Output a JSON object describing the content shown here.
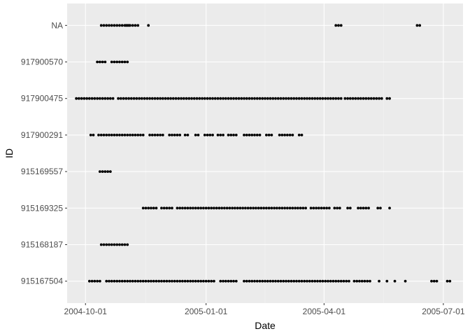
{
  "chart_data": {
    "type": "scatter",
    "xlabel": "Date",
    "ylabel": "ID",
    "x_type": "date",
    "xlim": [
      "2004-09-17",
      "2005-07-16"
    ],
    "x_ticks": [
      {
        "value": "2004-10-01",
        "label": "2004-10-01"
      },
      {
        "value": "2005-01-01",
        "label": "2005-01-01"
      },
      {
        "value": "2005-04-01",
        "label": "2005-04-01"
      },
      {
        "value": "2005-07-01",
        "label": "2005-07-01"
      }
    ],
    "categories": [
      "915167504",
      "915168187",
      "915169325",
      "915169557",
      "917900291",
      "917900475",
      "917900570",
      "NA"
    ],
    "grid": true,
    "legend": "none",
    "colors": {
      "panel": "#ebebeb",
      "grid_major": "#ffffff",
      "grid_minor": "#f5f5f5",
      "point": "#000000"
    },
    "series": [
      {
        "category": "NA",
        "x": [
          "2004-10-13",
          "2004-10-15",
          "2004-10-17",
          "2004-10-19",
          "2004-10-21",
          "2004-10-23",
          "2004-10-25",
          "2004-10-27",
          "2004-10-29",
          "2004-10-31",
          "2004-11-01",
          "2004-11-02",
          "2004-11-03",
          "2004-11-04",
          "2004-11-06",
          "2004-11-08",
          "2004-11-10",
          "2004-11-18",
          "2005-04-10",
          "2005-04-12",
          "2005-04-14",
          "2005-06-11",
          "2005-06-13"
        ]
      },
      {
        "category": "917900570",
        "x": [
          "2004-10-10",
          "2004-10-12",
          "2004-10-14",
          "2004-10-16",
          "2004-10-21",
          "2004-10-23",
          "2004-10-25",
          "2004-10-27",
          "2004-10-29",
          "2004-10-31",
          "2004-11-02"
        ]
      },
      {
        "category": "917900475",
        "x": [
          "2004-09-24",
          "2004-09-26",
          "2004-09-28",
          "2004-09-30",
          "2004-10-02",
          "2004-10-04",
          "2004-10-06",
          "2004-10-08",
          "2004-10-10",
          "2004-10-12",
          "2004-10-14",
          "2004-10-16",
          "2004-10-18",
          "2004-10-20",
          "2004-10-22",
          "2004-10-26",
          "2004-10-28",
          "2004-10-30",
          "2004-11-01",
          "2004-11-03",
          "2004-11-05",
          "2004-11-07",
          "2004-11-09",
          "2004-11-11",
          "2004-11-13",
          "2004-11-15",
          "2004-11-17",
          "2004-11-19",
          "2004-11-21",
          "2004-11-23",
          "2004-11-25",
          "2004-11-27",
          "2004-11-29",
          "2004-12-01",
          "2004-12-03",
          "2004-12-05",
          "2004-12-07",
          "2004-12-09",
          "2004-12-11",
          "2004-12-13",
          "2004-12-15",
          "2004-12-17",
          "2004-12-19",
          "2004-12-21",
          "2004-12-23",
          "2004-12-25",
          "2004-12-27",
          "2004-12-29",
          "2004-12-31",
          "2005-01-02",
          "2005-01-04",
          "2005-01-06",
          "2005-01-08",
          "2005-01-10",
          "2005-01-12",
          "2005-01-14",
          "2005-01-16",
          "2005-01-18",
          "2005-01-20",
          "2005-01-22",
          "2005-01-24",
          "2005-01-26",
          "2005-01-28",
          "2005-01-30",
          "2005-02-01",
          "2005-02-03",
          "2005-02-05",
          "2005-02-07",
          "2005-02-09",
          "2005-02-11",
          "2005-02-13",
          "2005-02-15",
          "2005-02-17",
          "2005-02-19",
          "2005-02-21",
          "2005-02-23",
          "2005-02-25",
          "2005-02-27",
          "2005-03-01",
          "2005-03-03",
          "2005-03-05",
          "2005-03-07",
          "2005-03-09",
          "2005-03-11",
          "2005-03-13",
          "2005-03-15",
          "2005-03-17",
          "2005-03-19",
          "2005-03-21",
          "2005-03-23",
          "2005-03-25",
          "2005-03-27",
          "2005-03-29",
          "2005-03-31",
          "2005-04-02",
          "2005-04-04",
          "2005-04-06",
          "2005-04-08",
          "2005-04-10",
          "2005-04-12",
          "2005-04-14",
          "2005-04-17",
          "2005-04-19",
          "2005-04-21",
          "2005-04-23",
          "2005-04-25",
          "2005-04-27",
          "2005-04-29",
          "2005-05-01",
          "2005-05-03",
          "2005-05-05",
          "2005-05-07",
          "2005-05-09",
          "2005-05-11",
          "2005-05-13",
          "2005-05-15",
          "2005-05-19",
          "2005-05-21"
        ]
      },
      {
        "category": "917900291",
        "x": [
          "2004-10-05",
          "2004-10-07",
          "2004-10-11",
          "2004-10-13",
          "2004-10-15",
          "2004-10-17",
          "2004-10-19",
          "2004-10-21",
          "2004-10-23",
          "2004-10-25",
          "2004-10-27",
          "2004-10-29",
          "2004-10-31",
          "2004-11-02",
          "2004-11-04",
          "2004-11-06",
          "2004-11-08",
          "2004-11-10",
          "2004-11-12",
          "2004-11-14",
          "2004-11-19",
          "2004-11-21",
          "2004-11-23",
          "2004-11-25",
          "2004-11-27",
          "2004-11-29",
          "2004-12-04",
          "2004-12-06",
          "2004-12-08",
          "2004-12-10",
          "2004-12-12",
          "2004-12-16",
          "2004-12-18",
          "2004-12-24",
          "2004-12-26",
          "2004-12-31",
          "2005-01-02",
          "2005-01-04",
          "2005-01-06",
          "2005-01-10",
          "2005-01-12",
          "2005-01-14",
          "2005-01-18",
          "2005-01-20",
          "2005-01-22",
          "2005-01-24",
          "2005-01-30",
          "2005-02-01",
          "2005-02-03",
          "2005-02-05",
          "2005-02-07",
          "2005-02-09",
          "2005-02-11",
          "2005-02-16",
          "2005-02-18",
          "2005-02-20",
          "2005-02-26",
          "2005-02-28",
          "2005-03-02",
          "2005-03-04",
          "2005-03-06",
          "2005-03-08",
          "2005-03-13",
          "2005-03-15"
        ]
      },
      {
        "category": "915169557",
        "x": [
          "2004-10-12",
          "2004-10-14",
          "2004-10-16",
          "2004-10-18",
          "2004-10-20"
        ]
      },
      {
        "category": "915169325",
        "x": [
          "2004-11-14",
          "2004-11-16",
          "2004-11-18",
          "2004-11-20",
          "2004-11-22",
          "2004-11-24",
          "2004-11-28",
          "2004-11-30",
          "2004-12-02",
          "2004-12-04",
          "2004-12-06",
          "2004-12-10",
          "2004-12-12",
          "2004-12-14",
          "2004-12-16",
          "2004-12-18",
          "2004-12-20",
          "2004-12-22",
          "2004-12-24",
          "2004-12-26",
          "2004-12-28",
          "2004-12-30",
          "2005-01-01",
          "2005-01-03",
          "2005-01-05",
          "2005-01-07",
          "2005-01-09",
          "2005-01-11",
          "2005-01-13",
          "2005-01-15",
          "2005-01-17",
          "2005-01-19",
          "2005-01-21",
          "2005-01-23",
          "2005-01-25",
          "2005-01-27",
          "2005-01-29",
          "2005-01-31",
          "2005-02-02",
          "2005-02-04",
          "2005-02-06",
          "2005-02-08",
          "2005-02-10",
          "2005-02-12",
          "2005-02-14",
          "2005-02-16",
          "2005-02-18",
          "2005-02-20",
          "2005-02-22",
          "2005-02-24",
          "2005-02-26",
          "2005-02-28",
          "2005-03-02",
          "2005-03-04",
          "2005-03-06",
          "2005-03-08",
          "2005-03-10",
          "2005-03-12",
          "2005-03-14",
          "2005-03-16",
          "2005-03-18",
          "2005-03-22",
          "2005-03-24",
          "2005-03-26",
          "2005-03-28",
          "2005-03-30",
          "2005-04-01",
          "2005-04-03",
          "2005-04-05",
          "2005-04-09",
          "2005-04-11",
          "2005-04-13",
          "2005-04-19",
          "2005-04-21",
          "2005-04-27",
          "2005-04-29",
          "2005-05-01",
          "2005-05-03",
          "2005-05-05",
          "2005-05-12",
          "2005-05-14",
          "2005-05-21"
        ]
      },
      {
        "category": "915168187",
        "x": [
          "2004-10-13",
          "2004-10-15",
          "2004-10-17",
          "2004-10-19",
          "2004-10-21",
          "2004-10-23",
          "2004-10-25",
          "2004-10-27",
          "2004-10-29",
          "2004-10-31",
          "2004-11-02"
        ]
      },
      {
        "category": "915167504",
        "x": [
          "2004-10-04",
          "2004-10-06",
          "2004-10-08",
          "2004-10-10",
          "2004-10-12",
          "2004-10-17",
          "2004-10-19",
          "2004-10-21",
          "2004-10-23",
          "2004-10-25",
          "2004-10-27",
          "2004-10-29",
          "2004-10-31",
          "2004-11-02",
          "2004-11-04",
          "2004-11-06",
          "2004-11-08",
          "2004-11-10",
          "2004-11-12",
          "2004-11-14",
          "2004-11-16",
          "2004-11-18",
          "2004-11-20",
          "2004-11-22",
          "2004-11-24",
          "2004-11-26",
          "2004-11-28",
          "2004-11-30",
          "2004-12-02",
          "2004-12-04",
          "2004-12-06",
          "2004-12-08",
          "2004-12-10",
          "2004-12-12",
          "2004-12-14",
          "2004-12-16",
          "2004-12-18",
          "2004-12-20",
          "2004-12-22",
          "2004-12-24",
          "2004-12-26",
          "2004-12-28",
          "2004-12-30",
          "2005-01-01",
          "2005-01-03",
          "2005-01-05",
          "2005-01-07",
          "2005-01-12",
          "2005-01-14",
          "2005-01-16",
          "2005-01-18",
          "2005-01-20",
          "2005-01-22",
          "2005-01-24",
          "2005-01-30",
          "2005-02-01",
          "2005-02-03",
          "2005-02-05",
          "2005-02-07",
          "2005-02-09",
          "2005-02-11",
          "2005-02-13",
          "2005-02-15",
          "2005-02-17",
          "2005-02-19",
          "2005-02-21",
          "2005-02-23",
          "2005-02-25",
          "2005-02-27",
          "2005-03-01",
          "2005-03-03",
          "2005-03-05",
          "2005-03-07",
          "2005-03-09",
          "2005-03-11",
          "2005-03-13",
          "2005-03-15",
          "2005-03-17",
          "2005-03-19",
          "2005-03-21",
          "2005-03-23",
          "2005-03-25",
          "2005-03-27",
          "2005-03-29",
          "2005-03-31",
          "2005-04-02",
          "2005-04-04",
          "2005-04-06",
          "2005-04-08",
          "2005-04-10",
          "2005-04-12",
          "2005-04-14",
          "2005-04-16",
          "2005-04-18",
          "2005-04-20",
          "2005-04-24",
          "2005-04-26",
          "2005-04-28",
          "2005-04-30",
          "2005-05-02",
          "2005-05-04",
          "2005-05-06",
          "2005-05-13",
          "2005-05-19",
          "2005-05-25",
          "2005-06-02",
          "2005-06-22",
          "2005-06-24",
          "2005-06-26",
          "2005-07-04",
          "2005-07-06"
        ]
      }
    ]
  }
}
